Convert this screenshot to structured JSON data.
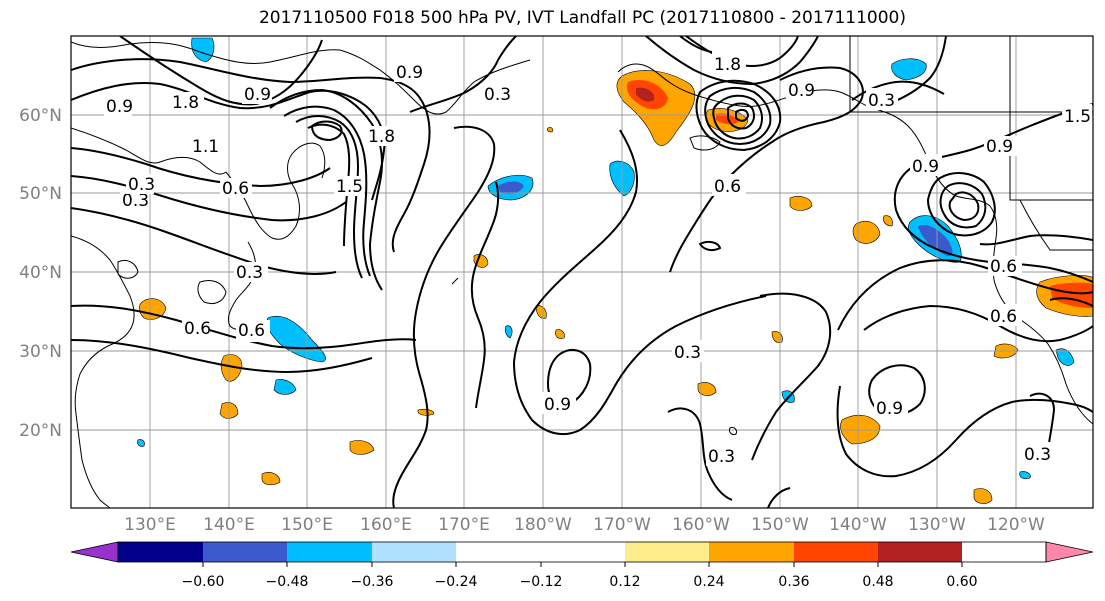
{
  "title": "2017110500 F018 500 hPa PV, IVT Landfall PC (2017110800 - 2017111000)",
  "lat_labels": [
    "60°N",
    "50°N",
    "40°N",
    "30°N",
    "20°N"
  ],
  "lon_labels": [
    "130°E",
    "140°E",
    "150°E",
    "160°E",
    "170°E",
    "180°W",
    "170°W",
    "160°W",
    "150°W",
    "140°W",
    "130°W",
    "120°W"
  ],
  "colorbar": {
    "colors": [
      "#9932CC",
      "#00008B",
      "#3A5BCD",
      "#00BFFF",
      "#B0E2FF",
      "#FFFFFF",
      "#FFFFFF",
      "#FFEC8B",
      "#FFA500",
      "#FF4500",
      "#B22222",
      "#FF88AA"
    ],
    "tick_labels": [
      "−0.60",
      "−0.48",
      "−0.36",
      "−0.24",
      "−0.12",
      "0.12",
      "0.24",
      "0.36",
      "0.48",
      "0.60"
    ]
  },
  "contour_labels": [
    "0.9",
    "1.8",
    "0.9",
    "0.9",
    "0.3",
    "1.8",
    "0.9",
    "0.3",
    "0.9",
    "1.5",
    "1.1",
    "1.5",
    "1.8",
    "0.6",
    "0.3",
    "0.6",
    "0.3",
    "0.3",
    "0.9",
    "0.6",
    "0.6",
    "0.6",
    "0.3",
    "0.9",
    "0.3",
    "0.3",
    "0.9",
    "0.6"
  ],
  "colors": {
    "contour": "#000000",
    "grid": "#9a9a9a",
    "coast": "#000000",
    "axis_label": "#808080"
  }
}
